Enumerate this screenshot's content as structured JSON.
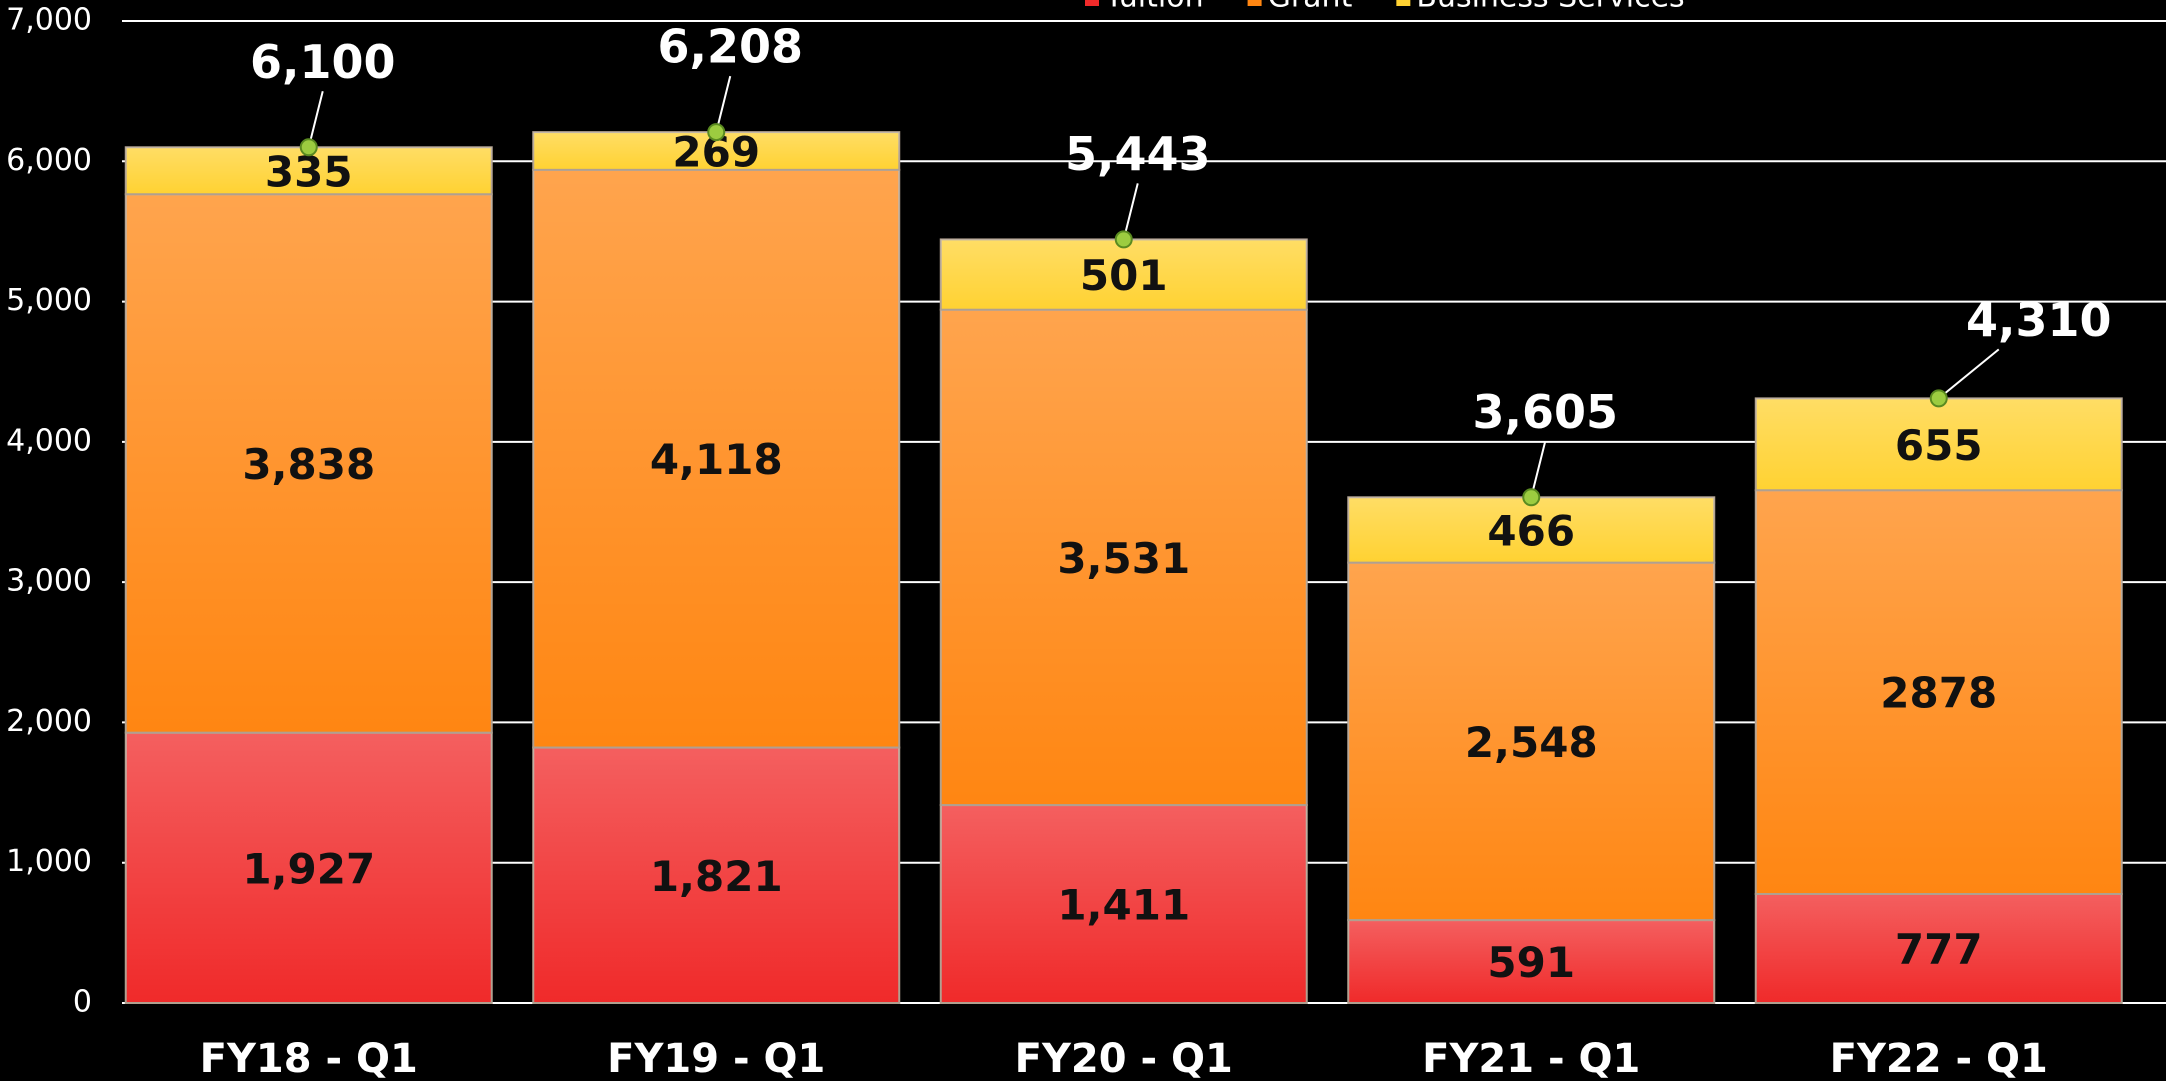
{
  "chart_data": {
    "type": "bar",
    "stacked": true,
    "categories": [
      "FY18 - Q1",
      "FY19 - Q1",
      "FY20 - Q1",
      "FY21 - Q1",
      "FY22 - Q1"
    ],
    "series": [
      {
        "name": "Tuition",
        "color": "#f02a2a",
        "values": [
          1927,
          1821,
          1411,
          591,
          777
        ],
        "value_labels": [
          "1,927",
          "1,821",
          "1,411",
          "591",
          "777"
        ]
      },
      {
        "name": "Grant",
        "color": "#ff8612",
        "values": [
          3838,
          4118,
          3531,
          2548,
          2878
        ],
        "value_labels": [
          "3,838",
          "4,118",
          "3,531",
          "2,548",
          "2878"
        ]
      },
      {
        "name": "Business Services",
        "color": "#ffd232",
        "values": [
          335,
          269,
          501,
          466,
          655
        ]
      }
    ],
    "totals": [
      6100,
      6208,
      5443,
      3605,
      4310
    ],
    "totals_labels": [
      "6,100",
      "6,208",
      "5,443",
      "3,605",
      "4,310"
    ],
    "ylim": [
      0,
      7000
    ],
    "yticks": [
      0,
      {
        "value": 1000,
        "label": "1,000"
      },
      {
        "value": 2000,
        "label": "2,000"
      },
      {
        "value": 3000,
        "label": "3,000"
      },
      {
        "value": 4000,
        "label": "4,000"
      },
      {
        "value": 5000,
        "label": "5,000"
      },
      {
        "value": 6000,
        "label": "6,000"
      },
      {
        "value": 7000,
        "label": "7,000"
      }
    ],
    "grid": true,
    "legend": "top"
  }
}
